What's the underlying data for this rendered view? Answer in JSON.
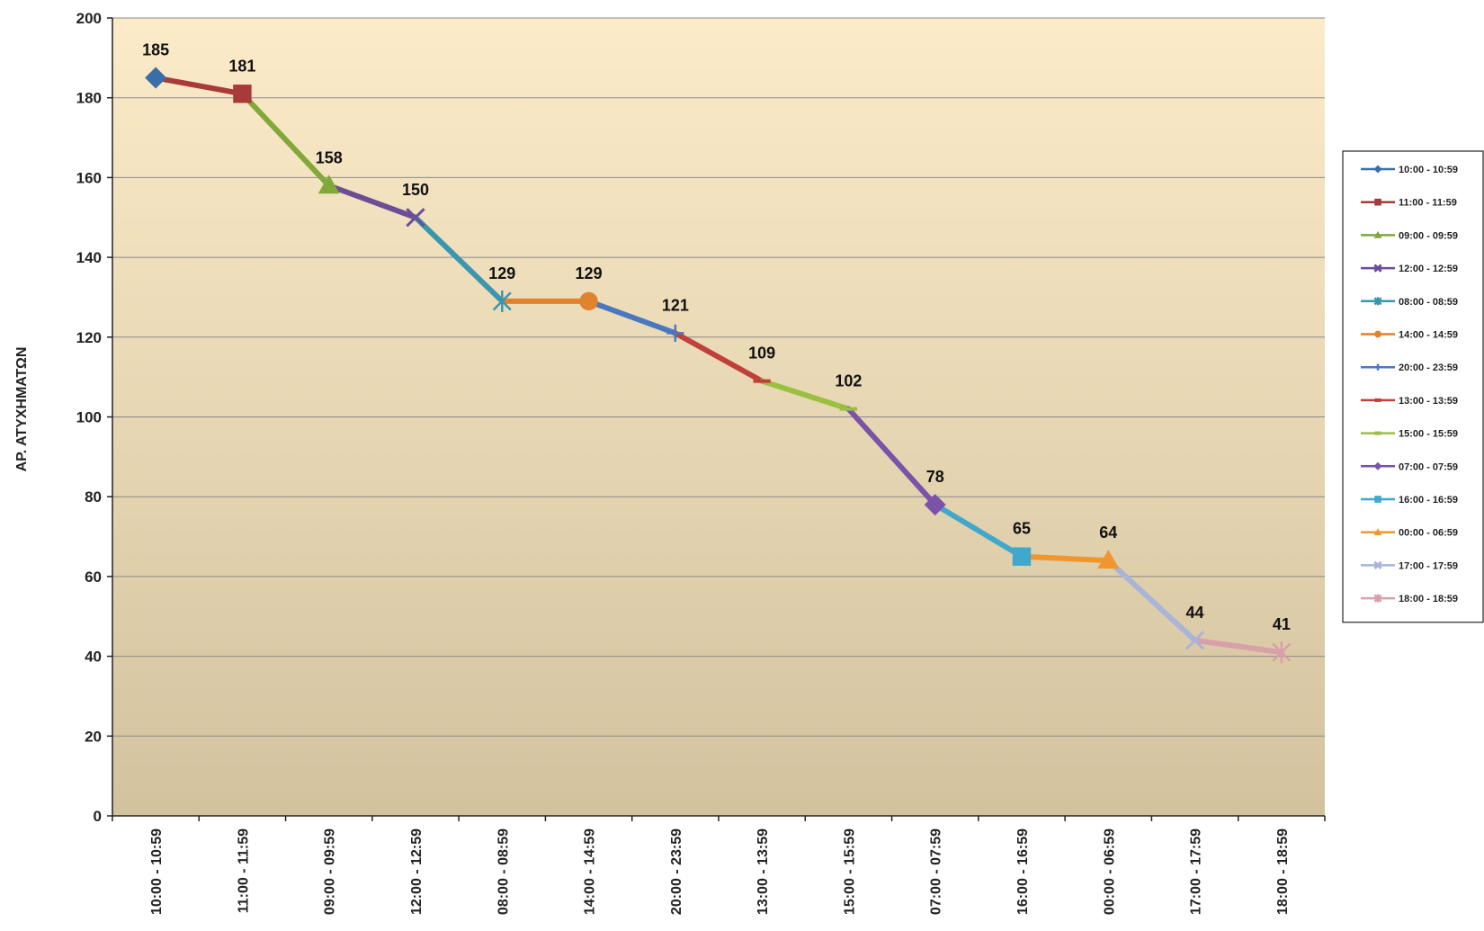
{
  "chart_data": {
    "type": "line",
    "title": "",
    "xlabel": "",
    "ylabel": "ΑΡ. ΑΤΥΧΗΜΑΤΩΝ",
    "ylim": [
      0,
      200
    ],
    "yticks": [
      0,
      20,
      40,
      60,
      80,
      100,
      120,
      140,
      160,
      180,
      200
    ],
    "grid": true,
    "legend_position": "right",
    "categories": [
      "10:00 - 10:59",
      "11:00 - 11:59",
      "09:00 - 09:59",
      "12:00 - 12:59",
      "08:00 - 08:59",
      "14:00 - 14:59",
      "20:00 - 23:59",
      "13:00 - 13:59",
      "15:00 - 15:59",
      "07:00 - 07:59",
      "16:00 - 16:59",
      "00:00 - 06:59",
      "17:00 - 17:59",
      "18:00 - 18:59"
    ],
    "values": [
      185,
      181,
      158,
      150,
      129,
      129,
      121,
      109,
      102,
      78,
      65,
      64,
      44,
      41
    ],
    "series": [
      {
        "name": "10:00 - 10:59",
        "color": "#3A6EA8",
        "marker": "diamond"
      },
      {
        "name": "11:00 - 11:59",
        "color": "#A83A3A",
        "marker": "square"
      },
      {
        "name": "09:00 - 09:59",
        "color": "#82A83A",
        "marker": "triangle"
      },
      {
        "name": "12:00 - 12:59",
        "color": "#6B4E96",
        "marker": "x"
      },
      {
        "name": "08:00 - 08:59",
        "color": "#3A96AE",
        "marker": "star"
      },
      {
        "name": "14:00 - 14:59",
        "color": "#E0822E",
        "marker": "circle"
      },
      {
        "name": "20:00 - 23:59",
        "color": "#4A78C0",
        "marker": "plus"
      },
      {
        "name": "13:00 - 13:59",
        "color": "#C0403A",
        "marker": "dash"
      },
      {
        "name": "15:00 - 15:59",
        "color": "#9AC040",
        "marker": "dash"
      },
      {
        "name": "07:00 - 07:59",
        "color": "#7A52A8",
        "marker": "diamond"
      },
      {
        "name": "16:00 - 16:59",
        "color": "#40A8CC",
        "marker": "square"
      },
      {
        "name": "00:00 - 06:59",
        "color": "#F0962E",
        "marker": "triangle"
      },
      {
        "name": "17:00 - 17:59",
        "color": "#A8B4D8",
        "marker": "x"
      },
      {
        "name": "18:00 - 18:59",
        "color": "#D8A0A8",
        "marker": "star"
      }
    ],
    "colors": {
      "plot_bg_top": "#FCEBC8",
      "plot_bg_bottom": "#D2C29E",
      "grid": "#8A8A8A",
      "axis": "#222222"
    }
  }
}
